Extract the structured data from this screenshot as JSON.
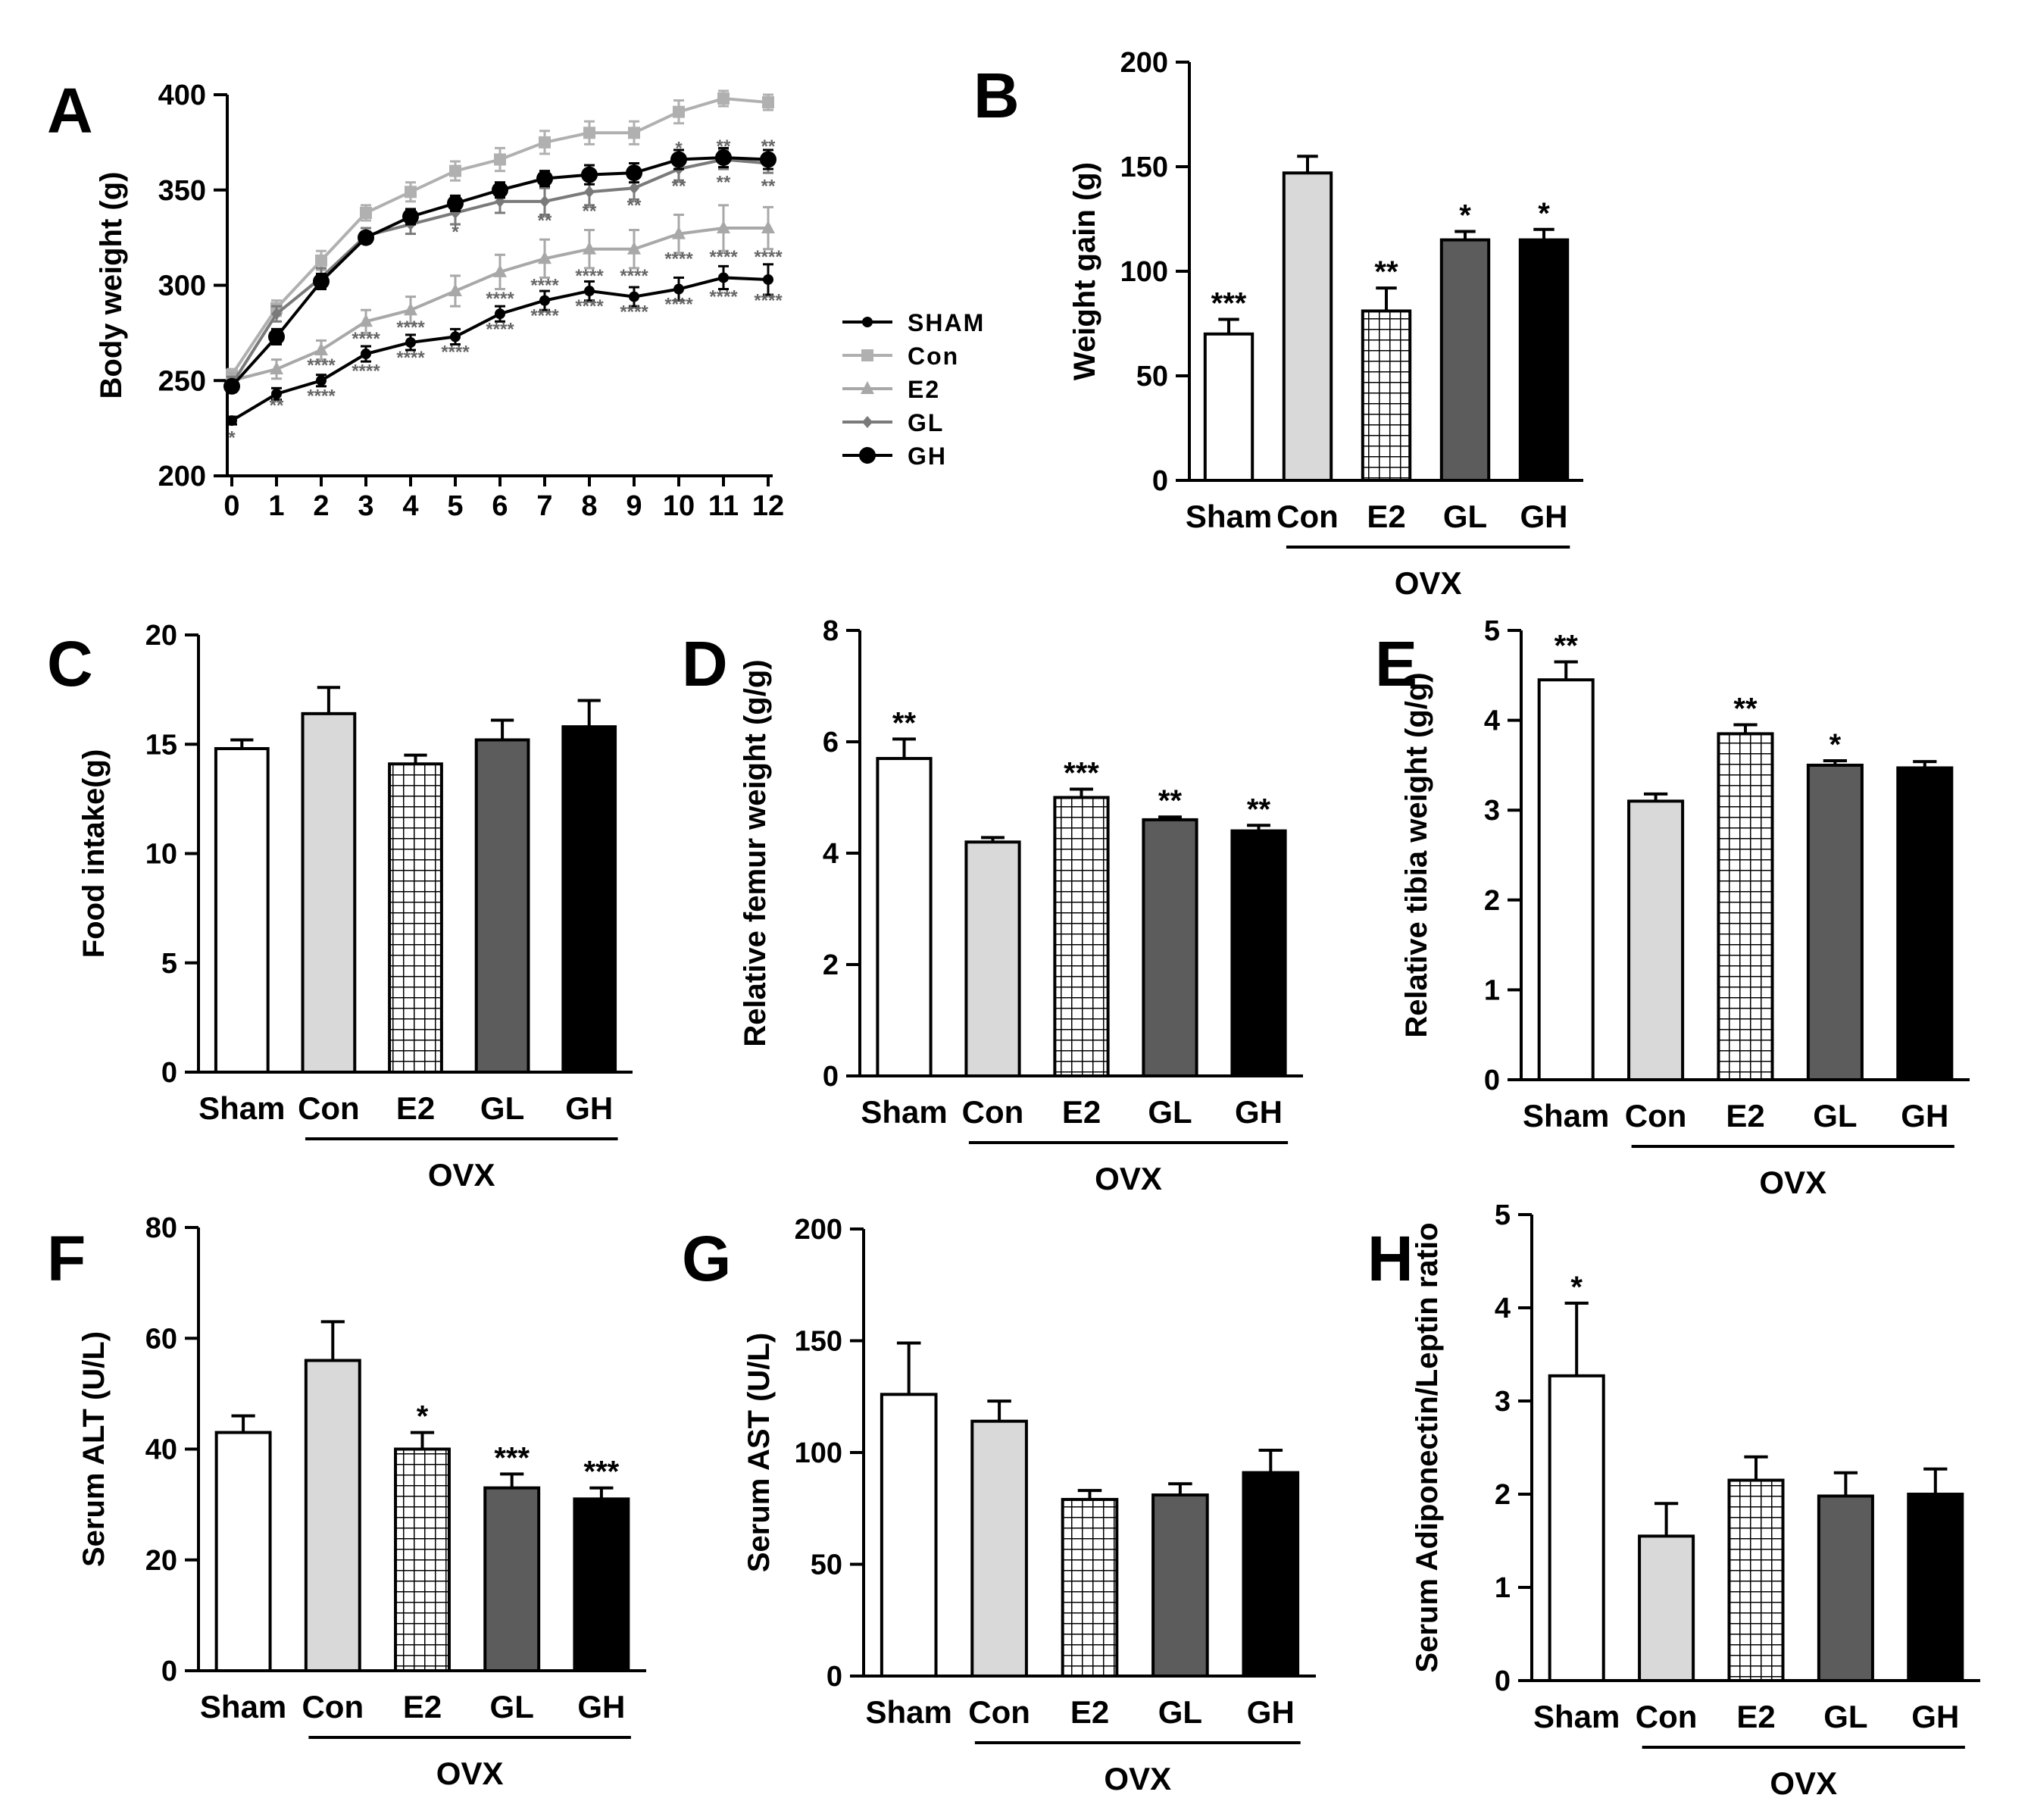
{
  "colors": {
    "Sham": "#ffffff",
    "Con": "#d9d9d9",
    "E2": "hatch",
    "GL": "#5c5c5c",
    "GH": "#000000",
    "line_SHAM": "#000000",
    "line_Con": "#b0b0b0",
    "line_E2": "#a8a8a8",
    "line_GL": "#7a7a7a",
    "line_GH": "#000000"
  },
  "chart_data": [
    {
      "panel": "A",
      "type": "line",
      "xlabel": "",
      "ylabel": "Body weight (g)",
      "ylim": [
        200,
        400
      ],
      "yticks": [
        "200",
        "250",
        "300",
        "350",
        "400"
      ],
      "x": [
        "0",
        "1",
        "2",
        "3",
        "4",
        "5",
        "6",
        "7",
        "8",
        "9",
        "10",
        "11",
        "12"
      ],
      "series": [
        {
          "name": "SHAM",
          "marker": "dot",
          "values": [
            229,
            243,
            250,
            264,
            270,
            273,
            285,
            292,
            297,
            294,
            298,
            304,
            303
          ],
          "errors": [
            2,
            3,
            3,
            4,
            4,
            4,
            4,
            5,
            5,
            5,
            6,
            6,
            8
          ]
        },
        {
          "name": "Con",
          "marker": "square",
          "values": [
            253,
            288,
            313,
            338,
            349,
            360,
            366,
            375,
            380,
            380,
            391,
            398,
            396
          ],
          "errors": [
            3,
            4,
            5,
            4,
            5,
            5,
            6,
            6,
            6,
            6,
            6,
            4,
            4
          ]
        },
        {
          "name": "E2",
          "marker": "triangle",
          "values": [
            250,
            256,
            266,
            281,
            287,
            297,
            307,
            314,
            319,
            319,
            327,
            330,
            330
          ],
          "errors": [
            4,
            5,
            5,
            6,
            7,
            8,
            9,
            10,
            10,
            10,
            10,
            12,
            11
          ]
        },
        {
          "name": "GL",
          "marker": "diamond",
          "values": [
            248,
            285,
            304,
            326,
            332,
            338,
            344,
            344,
            349,
            351,
            361,
            366,
            364
          ],
          "errors": [
            4,
            4,
            5,
            4,
            5,
            6,
            6,
            7,
            7,
            6,
            6,
            5,
            5
          ]
        },
        {
          "name": "GH",
          "marker": "circle",
          "values": [
            247,
            273,
            302,
            325,
            336,
            343,
            350,
            356,
            358,
            359,
            366,
            367,
            366
          ],
          "errors": [
            3,
            4,
            4,
            3,
            4,
            4,
            4,
            4,
            5,
            5,
            5,
            5,
            5
          ]
        }
      ],
      "annotations": [
        {
          "x": "0",
          "y": 220,
          "text": "*"
        },
        {
          "x": "1",
          "y": 237,
          "text": "**"
        },
        {
          "x": "2",
          "y": 242,
          "text": "****"
        },
        {
          "x": "2",
          "y": 258,
          "text": "****"
        },
        {
          "x": "3",
          "y": 255,
          "text": "****"
        },
        {
          "x": "3",
          "y": 272,
          "text": "****"
        },
        {
          "x": "4",
          "y": 262,
          "text": "****"
        },
        {
          "x": "4",
          "y": 278,
          "text": "****"
        },
        {
          "x": "5",
          "y": 265,
          "text": "****"
        },
        {
          "x": "5",
          "y": 328,
          "text": "*"
        },
        {
          "x": "6",
          "y": 277,
          "text": "****"
        },
        {
          "x": "6",
          "y": 293,
          "text": "****"
        },
        {
          "x": "7",
          "y": 284,
          "text": "****"
        },
        {
          "x": "7",
          "y": 300,
          "text": "****"
        },
        {
          "x": "7",
          "y": 334,
          "text": "**"
        },
        {
          "x": "8",
          "y": 289,
          "text": "****"
        },
        {
          "x": "8",
          "y": 305,
          "text": "****"
        },
        {
          "x": "8",
          "y": 339,
          "text": "**"
        },
        {
          "x": "9",
          "y": 286,
          "text": "****"
        },
        {
          "x": "9",
          "y": 305,
          "text": "****"
        },
        {
          "x": "9",
          "y": 342,
          "text": "**"
        },
        {
          "x": "10",
          "y": 290,
          "text": "****"
        },
        {
          "x": "10",
          "y": 314,
          "text": "****"
        },
        {
          "x": "10",
          "y": 352,
          "text": "**"
        },
        {
          "x": "10",
          "y": 372,
          "text": "*"
        },
        {
          "x": "11",
          "y": 294,
          "text": "****"
        },
        {
          "x": "11",
          "y": 315,
          "text": "****"
        },
        {
          "x": "11",
          "y": 354,
          "text": "**"
        },
        {
          "x": "11",
          "y": 373,
          "text": "**"
        },
        {
          "x": "12",
          "y": 292,
          "text": "****"
        },
        {
          "x": "12",
          "y": 315,
          "text": "****"
        },
        {
          "x": "12",
          "y": 352,
          "text": "**"
        },
        {
          "x": "12",
          "y": 373,
          "text": "**"
        }
      ],
      "legend": [
        "SHAM",
        "Con",
        "E2",
        "GL",
        "GH"
      ]
    },
    {
      "panel": "B",
      "type": "bar",
      "ylabel": "Weight gain (g)",
      "ylim": [
        0,
        200
      ],
      "yticks": [
        "0",
        "50",
        "100",
        "150",
        "200"
      ],
      "categories": [
        "Sham",
        "Con",
        "E2",
        "GL",
        "GH"
      ],
      "values": [
        70,
        147,
        81,
        115,
        115
      ],
      "errors": [
        7,
        8,
        11,
        4,
        5
      ],
      "significance": [
        "***",
        "",
        "**",
        "*",
        "*"
      ],
      "group_label": "OVX"
    },
    {
      "panel": "C",
      "type": "bar",
      "ylabel": "Food intake(g)",
      "ylim": [
        0,
        20
      ],
      "yticks": [
        "0",
        "5",
        "10",
        "15",
        "20"
      ],
      "categories": [
        "Sham",
        "Con",
        "E2",
        "GL",
        "GH"
      ],
      "values": [
        14.8,
        16.4,
        14.1,
        15.2,
        15.8
      ],
      "errors": [
        0.4,
        1.2,
        0.4,
        0.9,
        1.2
      ],
      "significance": [
        "",
        "",
        "",
        "",
        ""
      ],
      "group_label": "OVX"
    },
    {
      "panel": "D",
      "type": "bar",
      "ylabel": "Relative femur weight (g/g)",
      "ylim": [
        0,
        8
      ],
      "yticks": [
        "0",
        "2",
        "4",
        "6",
        "8"
      ],
      "categories": [
        "Sham",
        "Con",
        "E2",
        "GL",
        "GH"
      ],
      "values": [
        5.7,
        4.2,
        5.0,
        4.6,
        4.4
      ],
      "errors": [
        0.35,
        0.08,
        0.15,
        0.05,
        0.1
      ],
      "significance": [
        "**",
        "",
        "***",
        "**",
        "**"
      ],
      "group_label": "OVX"
    },
    {
      "panel": "E",
      "type": "bar",
      "ylabel": "Relative tibia weight (g/g)",
      "ylim": [
        0,
        5
      ],
      "yticks": [
        "0",
        "1",
        "2",
        "3",
        "4",
        "5"
      ],
      "categories": [
        "Sham",
        "Con",
        "E2",
        "GL",
        "GH"
      ],
      "values": [
        4.45,
        3.1,
        3.85,
        3.5,
        3.47
      ],
      "errors": [
        0.2,
        0.08,
        0.1,
        0.05,
        0.07
      ],
      "significance": [
        "**",
        "",
        "**",
        "*",
        ""
      ],
      "group_label": "OVX"
    },
    {
      "panel": "F",
      "type": "bar",
      "ylabel": "Serum ALT (U/L)",
      "ylim": [
        0,
        80
      ],
      "yticks": [
        "0",
        "20",
        "40",
        "60",
        "80"
      ],
      "categories": [
        "Sham",
        "Con",
        "E2",
        "GL",
        "GH"
      ],
      "values": [
        43,
        56,
        40,
        33,
        31
      ],
      "errors": [
        3,
        7,
        3,
        2.5,
        2
      ],
      "significance": [
        "",
        "",
        "*",
        "***",
        "***"
      ],
      "group_label": "OVX"
    },
    {
      "panel": "G",
      "type": "bar",
      "ylabel": "Serum AST (U/L)",
      "ylim": [
        0,
        200
      ],
      "yticks": [
        "0",
        "50",
        "100",
        "150",
        "200"
      ],
      "categories": [
        "Sham",
        "Con",
        "E2",
        "GL",
        "GH"
      ],
      "values": [
        126,
        114,
        79,
        81,
        91
      ],
      "errors": [
        23,
        9,
        4,
        5,
        10
      ],
      "significance": [
        "",
        "",
        "",
        "",
        ""
      ],
      "group_label": "OVX"
    },
    {
      "panel": "H",
      "type": "bar",
      "ylabel": "Serum Adiponectin/Leptin ratio",
      "ylim": [
        0,
        5
      ],
      "yticks": [
        "0",
        "1",
        "2",
        "3",
        "4",
        "5"
      ],
      "categories": [
        "Sham",
        "Con",
        "E2",
        "GL",
        "GH"
      ],
      "values": [
        3.27,
        1.55,
        2.15,
        1.98,
        2.0
      ],
      "errors": [
        0.78,
        0.35,
        0.25,
        0.25,
        0.27
      ],
      "significance": [
        "*",
        "",
        "",
        "",
        ""
      ],
      "group_label": "OVX"
    }
  ]
}
